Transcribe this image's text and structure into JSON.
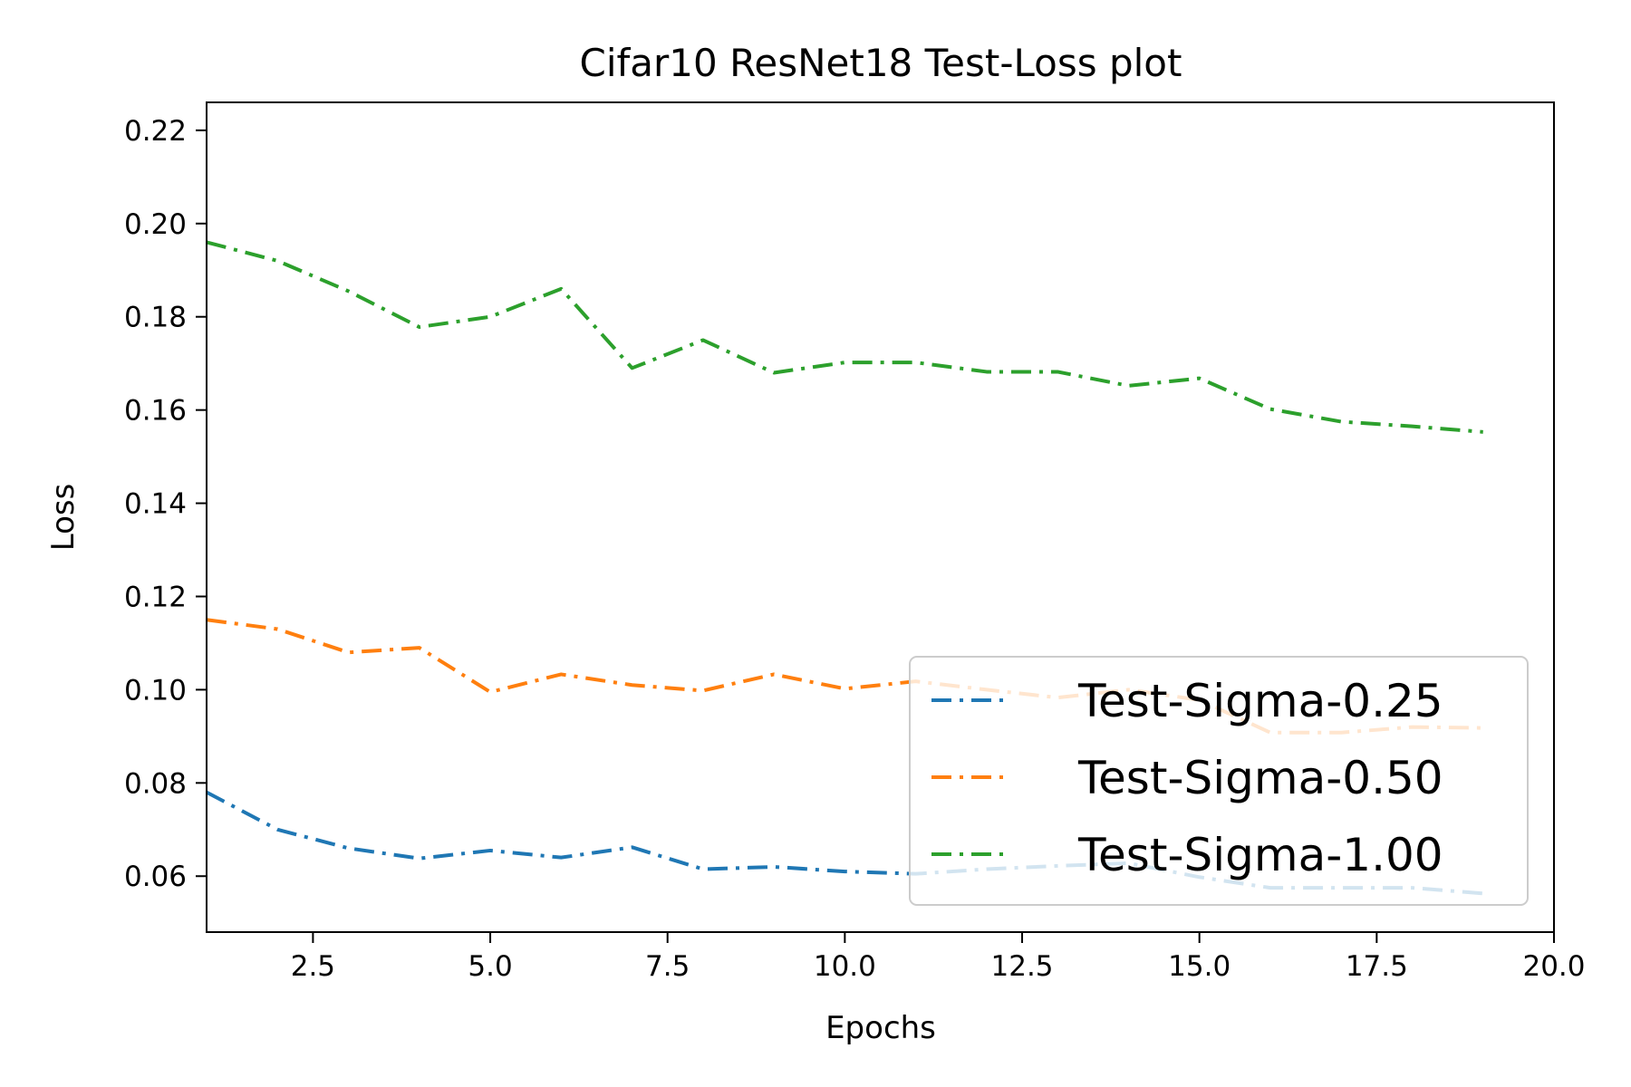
{
  "chart_data": {
    "type": "line",
    "title": "Cifar10 ResNet18 Test-Loss plot",
    "xlabel": "Epochs",
    "ylabel": "Loss",
    "xlim": [
      1,
      20
    ],
    "ylim": [
      0.048,
      0.226
    ],
    "xticks": [
      2.5,
      5.0,
      7.5,
      10.0,
      12.5,
      15.0,
      17.5,
      20.0
    ],
    "xtick_labels": [
      "2.5",
      "5.0",
      "7.5",
      "10.0",
      "12.5",
      "15.0",
      "17.5",
      "20.0"
    ],
    "yticks": [
      0.06,
      0.08,
      0.1,
      0.12,
      0.14,
      0.16,
      0.18,
      0.2,
      0.22
    ],
    "ytick_labels": [
      "0.06",
      "0.08",
      "0.10",
      "0.12",
      "0.14",
      "0.16",
      "0.18",
      "0.20",
      "0.22"
    ],
    "grid": false,
    "legend_position": "bottom-right",
    "line_style": "dash-dot",
    "x": [
      1,
      2,
      3,
      4,
      5,
      6,
      7,
      8,
      9,
      10,
      11,
      12,
      13,
      14,
      15,
      16,
      17,
      18,
      19
    ],
    "series": [
      {
        "name": "Test-Sigma-0.25",
        "color": "#1f77b4",
        "values": [
          0.078,
          0.07,
          0.066,
          0.0638,
          0.0655,
          0.064,
          0.0662,
          0.0615,
          0.062,
          0.061,
          0.0605,
          0.0615,
          0.0622,
          0.0628,
          0.0598,
          0.0575,
          0.0575,
          0.0575,
          0.0563
        ]
      },
      {
        "name": "Test-Sigma-0.50",
        "color": "#ff7f0e",
        "values": [
          0.115,
          0.113,
          0.108,
          0.109,
          0.0995,
          0.1033,
          0.101,
          0.0998,
          0.1033,
          0.1002,
          0.1018,
          0.1,
          0.0983,
          0.1,
          0.0978,
          0.0908,
          0.0908,
          0.092,
          0.0918
        ]
      },
      {
        "name": "Test-Sigma-1.00",
        "color": "#2ca02c",
        "values": [
          0.196,
          0.192,
          0.1855,
          0.1778,
          0.18,
          0.186,
          0.169,
          0.175,
          0.168,
          0.1702,
          0.1702,
          0.1682,
          0.1682,
          0.1652,
          0.1668,
          0.1602,
          0.1575,
          0.1565,
          0.1553
        ]
      }
    ]
  }
}
